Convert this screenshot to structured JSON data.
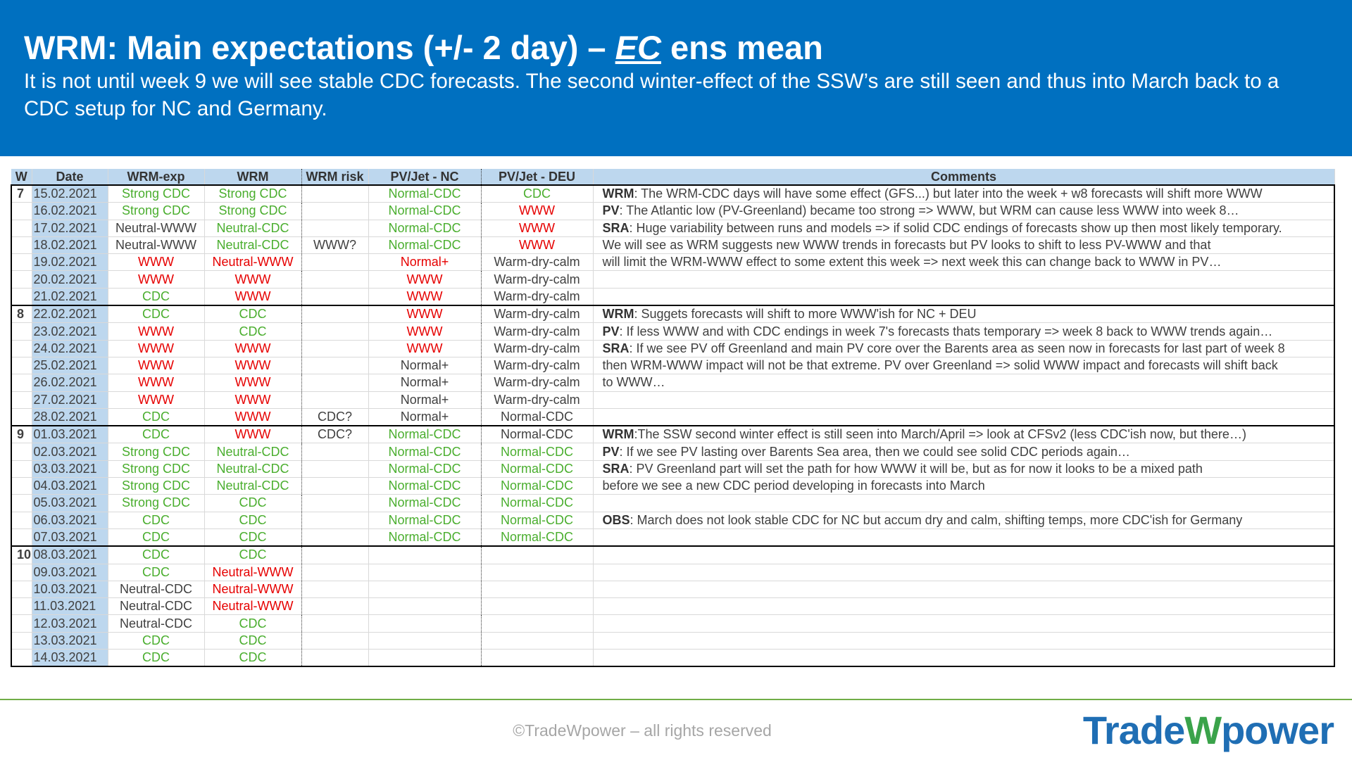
{
  "header": {
    "title": {
      "before": "WRM: Main expectations (+/- 2 day) – ",
      "emphasis": "EC",
      "after": " ens mean"
    },
    "subtitle": "It is not until week 9 we will see stable CDC forecasts. The second winter-effect of the SSW’s are still seen and thus into March back to a CDC setup for NC and Germany."
  },
  "table": {
    "columns": [
      "W",
      "Date",
      "WRM-exp",
      "WRM",
      "WRM risk",
      "PV/Jet - NC",
      "PV/Jet - DEU",
      "Comments"
    ],
    "rows": [
      {
        "week": "7",
        "date": "15.02.2021",
        "cells": [
          {
            "text": "Strong CDC",
            "color": "#4aae2e"
          },
          {
            "text": "Strong CDC",
            "color": "#4aae2e"
          },
          null,
          {
            "text": "Normal-CDC",
            "color": "#4aae2e"
          },
          {
            "text": "CDC",
            "color": "#4aae2e"
          }
        ],
        "comment": {
          "label": "WRM",
          "text": ": The WRM-CDC days will have some effect (GFS...) but later into the week + w8 forecasts will shift more WWW"
        }
      },
      {
        "date": "16.02.2021",
        "cells": [
          {
            "text": "Strong CDC",
            "color": "#4aae2e"
          },
          {
            "text": "Strong CDC",
            "color": "#4aae2e"
          },
          null,
          {
            "text": "Normal-CDC",
            "color": "#4aae2e"
          },
          {
            "text": "WWW",
            "color": "#e60000"
          }
        ],
        "comment": {
          "label": "PV",
          "text": ": The Atlantic low (PV-Greenland) became too strong => WWW, but WRM can cause less WWW into week 8…"
        }
      },
      {
        "date": "17.02.2021",
        "cells": [
          {
            "text": "Neutral-WWW",
            "color": "#404040"
          },
          {
            "text": "Neutral-CDC",
            "color": "#4aae2e"
          },
          null,
          {
            "text": "Normal-CDC",
            "color": "#4aae2e"
          },
          {
            "text": "WWW",
            "color": "#e60000"
          }
        ],
        "comment": {
          "label": "SRA",
          "text": ": Huge variability between runs and models => if solid CDC endings of forecasts show up then most likely temporary."
        }
      },
      {
        "date": "18.02.2021",
        "cells": [
          {
            "text": "Neutral-WWW",
            "color": "#404040"
          },
          {
            "text": "Neutral-CDC",
            "color": "#4aae2e"
          },
          {
            "text": "WWW?",
            "color": "#404040"
          },
          {
            "text": "Normal-CDC",
            "color": "#4aae2e"
          },
          {
            "text": "WWW",
            "color": "#e60000"
          }
        ],
        "comment": {
          "text": "We will see as WRM suggests new WWW trends in forecasts but PV looks to shift to less PV-WWW and that"
        }
      },
      {
        "date": "19.02.2021",
        "cells": [
          {
            "text": "WWW",
            "color": "#e60000"
          },
          {
            "text": "Neutral-WWW",
            "color": "#e60000"
          },
          null,
          {
            "text": "Normal+",
            "color": "#e60000"
          },
          {
            "text": "Warm-dry-calm",
            "color": "#404040"
          }
        ],
        "comment": {
          "text": "will limit the WRM-WWW effect to some extent this week => next week this can change back to WWW in PV…"
        }
      },
      {
        "date": "20.02.2021",
        "cells": [
          {
            "text": "WWW",
            "color": "#e60000"
          },
          {
            "text": "WWW",
            "color": "#e60000"
          },
          null,
          {
            "text": "WWW",
            "color": "#e60000"
          },
          {
            "text": "Warm-dry-calm",
            "color": "#404040"
          }
        ]
      },
      {
        "date": "21.02.2021",
        "cells": [
          {
            "text": "CDC",
            "color": "#4aae2e"
          },
          {
            "text": "WWW",
            "color": "#e60000"
          },
          null,
          {
            "text": "WWW",
            "color": "#e60000"
          },
          {
            "text": "Warm-dry-calm",
            "color": "#404040"
          }
        ]
      },
      {
        "week": "8",
        "date": "22.02.2021",
        "cells": [
          {
            "text": "CDC",
            "color": "#4aae2e"
          },
          {
            "text": "CDC",
            "color": "#4aae2e"
          },
          null,
          {
            "text": "WWW",
            "color": "#e60000"
          },
          {
            "text": "Warm-dry-calm",
            "color": "#404040"
          }
        ],
        "comment": {
          "label": "WRM",
          "text": ": Suggets forecasts will shift to more WWW'ish for NC + DEU"
        }
      },
      {
        "date": "23.02.2021",
        "cells": [
          {
            "text": "WWW",
            "color": "#e60000"
          },
          {
            "text": "CDC",
            "color": "#4aae2e"
          },
          null,
          {
            "text": "WWW",
            "color": "#e60000"
          },
          {
            "text": "Warm-dry-calm",
            "color": "#404040"
          }
        ],
        "comment": {
          "label": "PV",
          "text": ": If less WWW and with CDC endings in week 7's forecasts thats temporary => week 8 back to WWW trends again…"
        }
      },
      {
        "date": "24.02.2021",
        "cells": [
          {
            "text": "WWW",
            "color": "#e60000"
          },
          {
            "text": "WWW",
            "color": "#e60000"
          },
          null,
          {
            "text": "WWW",
            "color": "#e60000"
          },
          {
            "text": "Warm-dry-calm",
            "color": "#404040"
          }
        ],
        "comment": {
          "label": "SRA",
          "text": ": If we see PV off Greenland and main PV core over the Barents area as seen now in forecasts for last part of week 8"
        }
      },
      {
        "date": "25.02.2021",
        "cells": [
          {
            "text": "WWW",
            "color": "#e60000"
          },
          {
            "text": "WWW",
            "color": "#e60000"
          },
          null,
          {
            "text": "Normal+",
            "color": "#404040"
          },
          {
            "text": "Warm-dry-calm",
            "color": "#404040"
          }
        ],
        "comment": {
          "text": "then WRM-WWW impact will not be that extreme. PV over Greenland => solid WWW impact and forecasts will shift back"
        }
      },
      {
        "date": "26.02.2021",
        "cells": [
          {
            "text": "WWW",
            "color": "#e60000"
          },
          {
            "text": "WWW",
            "color": "#e60000"
          },
          null,
          {
            "text": "Normal+",
            "color": "#404040"
          },
          {
            "text": "Warm-dry-calm",
            "color": "#404040"
          }
        ],
        "comment": {
          "text": "to WWW…"
        }
      },
      {
        "date": "27.02.2021",
        "cells": [
          {
            "text": "WWW",
            "color": "#e60000"
          },
          {
            "text": "WWW",
            "color": "#e60000"
          },
          null,
          {
            "text": "Normal+",
            "color": "#404040"
          },
          {
            "text": "Warm-dry-calm",
            "color": "#404040"
          }
        ]
      },
      {
        "date": "28.02.2021",
        "cells": [
          {
            "text": "CDC",
            "color": "#4aae2e"
          },
          {
            "text": "WWW",
            "color": "#e60000"
          },
          {
            "text": "CDC?",
            "color": "#404040"
          },
          {
            "text": "Normal+",
            "color": "#404040"
          },
          {
            "text": "Normal-CDC",
            "color": "#404040"
          }
        ]
      },
      {
        "week": "9",
        "date": "01.03.2021",
        "cells": [
          {
            "text": "CDC",
            "color": "#4aae2e"
          },
          {
            "text": "WWW",
            "color": "#e60000"
          },
          {
            "text": "CDC?",
            "color": "#404040"
          },
          {
            "text": "Normal-CDC",
            "color": "#4aae2e"
          },
          {
            "text": "Normal-CDC",
            "color": "#404040"
          }
        ],
        "comment": {
          "label": "WRM",
          "text": ":The SSW second winter effect is still seen into March/April => look at CFSv2 (less CDC'ish now, but there…)"
        }
      },
      {
        "date": "02.03.2021",
        "cells": [
          {
            "text": "Strong CDC",
            "color": "#4aae2e"
          },
          {
            "text": "Neutral-CDC",
            "color": "#4aae2e"
          },
          null,
          {
            "text": "Normal-CDC",
            "color": "#4aae2e"
          },
          {
            "text": "Normal-CDC",
            "color": "#4aae2e"
          }
        ],
        "comment": {
          "label": "PV",
          "text": ": If we see PV lasting over Barents Sea area, then we could see solid CDC periods again…"
        }
      },
      {
        "date": "03.03.2021",
        "cells": [
          {
            "text": "Strong CDC",
            "color": "#4aae2e"
          },
          {
            "text": "Neutral-CDC",
            "color": "#4aae2e"
          },
          null,
          {
            "text": "Normal-CDC",
            "color": "#4aae2e"
          },
          {
            "text": "Normal-CDC",
            "color": "#4aae2e"
          }
        ],
        "comment": {
          "label": "SRA",
          "text": ": PV Greenland part will set the path for how WWW it will be, but as for now it looks to be a mixed path"
        }
      },
      {
        "date": "04.03.2021",
        "cells": [
          {
            "text": "Strong CDC",
            "color": "#4aae2e"
          },
          {
            "text": "Neutral-CDC",
            "color": "#4aae2e"
          },
          null,
          {
            "text": "Normal-CDC",
            "color": "#4aae2e"
          },
          {
            "text": "Normal-CDC",
            "color": "#4aae2e"
          }
        ],
        "comment": {
          "text": "before we see a new CDC period developing in forecasts into March"
        }
      },
      {
        "date": "05.03.2021",
        "cells": [
          {
            "text": "Strong CDC",
            "color": "#4aae2e"
          },
          {
            "text": "CDC",
            "color": "#4aae2e"
          },
          null,
          {
            "text": "Normal-CDC",
            "color": "#4aae2e"
          },
          {
            "text": "Normal-CDC",
            "color": "#4aae2e"
          }
        ]
      },
      {
        "date": "06.03.2021",
        "cells": [
          {
            "text": "CDC",
            "color": "#4aae2e"
          },
          {
            "text": "CDC",
            "color": "#4aae2e"
          },
          null,
          {
            "text": "Normal-CDC",
            "color": "#4aae2e"
          },
          {
            "text": "Normal-CDC",
            "color": "#4aae2e"
          }
        ],
        "comment": {
          "label": "OBS",
          "text": ": March does not look stable CDC for NC but accum dry and calm, shifting temps, more CDC'ish for Germany"
        }
      },
      {
        "date": "07.03.2021",
        "cells": [
          {
            "text": "CDC",
            "color": "#4aae2e"
          },
          {
            "text": "CDC",
            "color": "#4aae2e"
          },
          null,
          {
            "text": "Normal-CDC",
            "color": "#4aae2e"
          },
          {
            "text": "Normal-CDC",
            "color": "#4aae2e"
          }
        ]
      },
      {
        "week": "10",
        "date": "08.03.2021",
        "cells": [
          {
            "text": "CDC",
            "color": "#4aae2e"
          },
          {
            "text": "CDC",
            "color": "#4aae2e"
          },
          null,
          null,
          null
        ]
      },
      {
        "date": "09.03.2021",
        "cells": [
          {
            "text": "CDC",
            "color": "#4aae2e"
          },
          {
            "text": "Neutral-WWW",
            "color": "#e60000"
          },
          null,
          null,
          null
        ]
      },
      {
        "date": "10.03.2021",
        "cells": [
          {
            "text": "Neutral-CDC",
            "color": "#404040"
          },
          {
            "text": "Neutral-WWW",
            "color": "#e60000"
          },
          null,
          null,
          null
        ]
      },
      {
        "date": "11.03.2021",
        "cells": [
          {
            "text": "Neutral-CDC",
            "color": "#404040"
          },
          {
            "text": "Neutral-WWW",
            "color": "#e60000"
          },
          null,
          null,
          null
        ]
      },
      {
        "date": "12.03.2021",
        "cells": [
          {
            "text": "Neutral-CDC",
            "color": "#404040"
          },
          {
            "text": "CDC",
            "color": "#4aae2e"
          },
          null,
          null,
          null
        ]
      },
      {
        "date": "13.03.2021",
        "cells": [
          {
            "text": "CDC",
            "color": "#4aae2e"
          },
          {
            "text": "CDC",
            "color": "#4aae2e"
          },
          null,
          null,
          null
        ]
      },
      {
        "date": "14.03.2021",
        "cells": [
          {
            "text": "CDC",
            "color": "#4aae2e"
          },
          {
            "text": "CDC",
            "color": "#4aae2e"
          },
          null,
          null,
          null
        ]
      }
    ]
  },
  "footer": {
    "copyright": "©TradeWpower – all rights reserved",
    "logo": [
      "Trade",
      "W",
      "power"
    ]
  }
}
